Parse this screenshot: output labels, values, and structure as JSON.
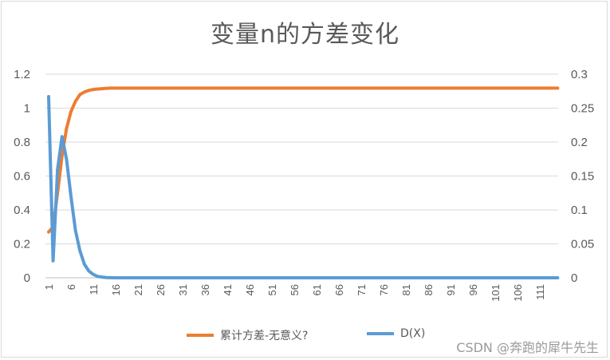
{
  "chart_data": {
    "type": "line",
    "title": "变量n的方差变化",
    "x_tick_labels": [
      "1",
      "6",
      "11",
      "16",
      "21",
      "26",
      "31",
      "36",
      "41",
      "46",
      "51",
      "56",
      "61",
      "66",
      "71",
      "76",
      "81",
      "86",
      "91",
      "96",
      "101",
      "106",
      "111"
    ],
    "x_max": 115,
    "left_axis": {
      "ylim": [
        0,
        1.2
      ],
      "ticks": [
        "0",
        "0.2",
        "0.4",
        "0.6",
        "0.8",
        "1",
        "1.2"
      ]
    },
    "right_axis": {
      "ylim": [
        0,
        0.3
      ],
      "ticks": [
        "0",
        "0.05",
        "0.1",
        "0.15",
        "0.2",
        "0.25",
        "0.3"
      ]
    },
    "series": [
      {
        "name": "累计方差-无意义?",
        "axis": "left",
        "color": "#ED7D31",
        "x": [
          1,
          2,
          3,
          4,
          5,
          6,
          7,
          8,
          9,
          10,
          11,
          12,
          13,
          14,
          15,
          16,
          115
        ],
        "values": [
          0.27,
          0.3,
          0.5,
          0.72,
          0.88,
          0.98,
          1.04,
          1.08,
          1.095,
          1.105,
          1.11,
          1.113,
          1.115,
          1.117,
          1.118,
          1.118,
          1.118
        ]
      },
      {
        "name": "D(X)",
        "axis": "right",
        "color": "#5B9BD5",
        "x": [
          1,
          2,
          3,
          4,
          5,
          6,
          7,
          8,
          9,
          10,
          11,
          12,
          13,
          14,
          16,
          115
        ],
        "values": [
          0.267,
          0.025,
          0.16,
          0.208,
          0.175,
          0.12,
          0.07,
          0.04,
          0.02,
          0.01,
          0.005,
          0.002,
          0.001,
          0.0003,
          0,
          0
        ]
      }
    ],
    "grid": "horizontal",
    "legend_position": "bottom"
  },
  "watermark": "CSDN @奔跑的犀牛先生"
}
